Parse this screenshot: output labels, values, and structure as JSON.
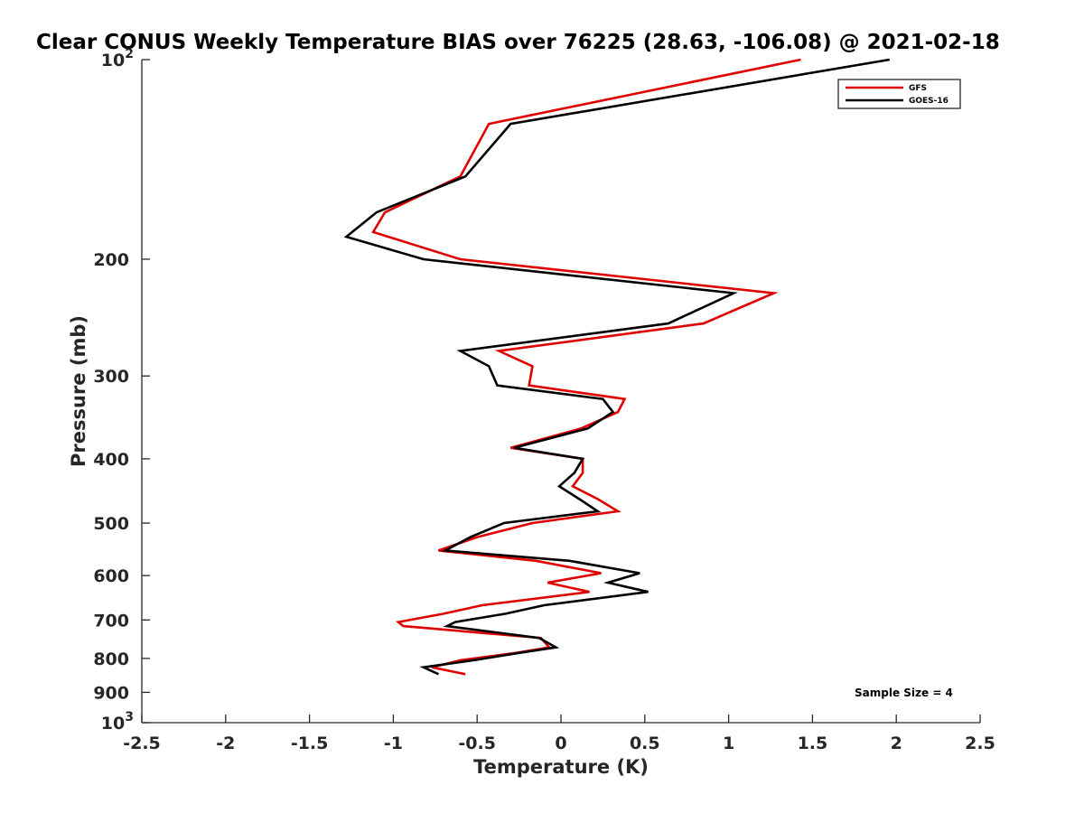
{
  "chart_data": {
    "type": "line",
    "title": "Clear CONUS Weekly Temperature BIAS over 76225 (28.63, -106.08) @ 2021-02-18",
    "xlabel": "Temperature (K)",
    "ylabel": "Pressure (mb)",
    "xlim": [
      -2.5,
      2.5
    ],
    "ylim": [
      100,
      1000
    ],
    "yscale": "log",
    "y_reversed": true,
    "x_ticks": [
      "-2.5",
      "-2",
      "-1.5",
      "-1",
      "-0.5",
      "0",
      "0.5",
      "1",
      "1.5",
      "2",
      "2.5"
    ],
    "y_ticks": [
      {
        "value": 100,
        "base": "10",
        "exp": "2",
        "label": ""
      },
      {
        "value": 200,
        "label": "200"
      },
      {
        "value": 300,
        "label": "300"
      },
      {
        "value": 400,
        "label": "400"
      },
      {
        "value": 500,
        "label": "500"
      },
      {
        "value": 600,
        "label": "600"
      },
      {
        "value": 700,
        "label": "700"
      },
      {
        "value": 800,
        "label": "800"
      },
      {
        "value": 900,
        "label": "900"
      },
      {
        "value": 1000,
        "base": "10",
        "exp": "3",
        "label": ""
      }
    ],
    "legend_position": "top-right",
    "grid": false,
    "annotation": "Sample Size = 4",
    "series": [
      {
        "name": "GFS",
        "color": "#e00000",
        "points": [
          [
            1.43,
            100
          ],
          [
            -0.43,
            125
          ],
          [
            -0.6,
            150
          ],
          [
            -1.05,
            170
          ],
          [
            -1.12,
            182
          ],
          [
            -0.6,
            200
          ],
          [
            1.27,
            225
          ],
          [
            0.85,
            250
          ],
          [
            -0.37,
            275
          ],
          [
            -0.17,
            290
          ],
          [
            -0.19,
            310
          ],
          [
            0.38,
            325
          ],
          [
            0.34,
            340
          ],
          [
            0.12,
            360
          ],
          [
            -0.3,
            385
          ],
          [
            0.13,
            400
          ],
          [
            0.13,
            420
          ],
          [
            0.07,
            440
          ],
          [
            0.22,
            460
          ],
          [
            0.34,
            480
          ],
          [
            -0.17,
            500
          ],
          [
            -0.5,
            525
          ],
          [
            -0.73,
            550
          ],
          [
            -0.15,
            570
          ],
          [
            0.24,
            595
          ],
          [
            -0.08,
            615
          ],
          [
            0.17,
            635
          ],
          [
            -0.47,
            665
          ],
          [
            -0.7,
            685
          ],
          [
            -0.97,
            705
          ],
          [
            -0.94,
            715
          ],
          [
            -0.12,
            745
          ],
          [
            -0.07,
            770
          ],
          [
            -0.27,
            785
          ],
          [
            -0.6,
            805
          ],
          [
            -0.77,
            825
          ],
          [
            -0.57,
            845
          ]
        ]
      },
      {
        "name": "GOES-16",
        "color": "#000000",
        "points": [
          [
            1.96,
            100
          ],
          [
            -0.3,
            125
          ],
          [
            -0.57,
            150
          ],
          [
            -1.1,
            170
          ],
          [
            -1.28,
            185
          ],
          [
            -0.82,
            200
          ],
          [
            1.03,
            225
          ],
          [
            0.64,
            250
          ],
          [
            -0.6,
            275
          ],
          [
            -0.43,
            290
          ],
          [
            -0.38,
            310
          ],
          [
            0.25,
            325
          ],
          [
            0.31,
            340
          ],
          [
            0.16,
            360
          ],
          [
            -0.28,
            385
          ],
          [
            0.13,
            400
          ],
          [
            0.08,
            420
          ],
          [
            -0.01,
            440
          ],
          [
            0.11,
            460
          ],
          [
            0.22,
            480
          ],
          [
            -0.34,
            500
          ],
          [
            -0.54,
            525
          ],
          [
            -0.69,
            550
          ],
          [
            0.05,
            570
          ],
          [
            0.47,
            595
          ],
          [
            0.28,
            615
          ],
          [
            0.52,
            635
          ],
          [
            -0.1,
            665
          ],
          [
            -0.33,
            685
          ],
          [
            -0.63,
            705
          ],
          [
            -0.68,
            715
          ],
          [
            -0.13,
            745
          ],
          [
            -0.03,
            770
          ],
          [
            -0.25,
            785
          ],
          [
            -0.52,
            805
          ],
          [
            -0.82,
            825
          ],
          [
            -0.73,
            845
          ]
        ]
      }
    ]
  }
}
